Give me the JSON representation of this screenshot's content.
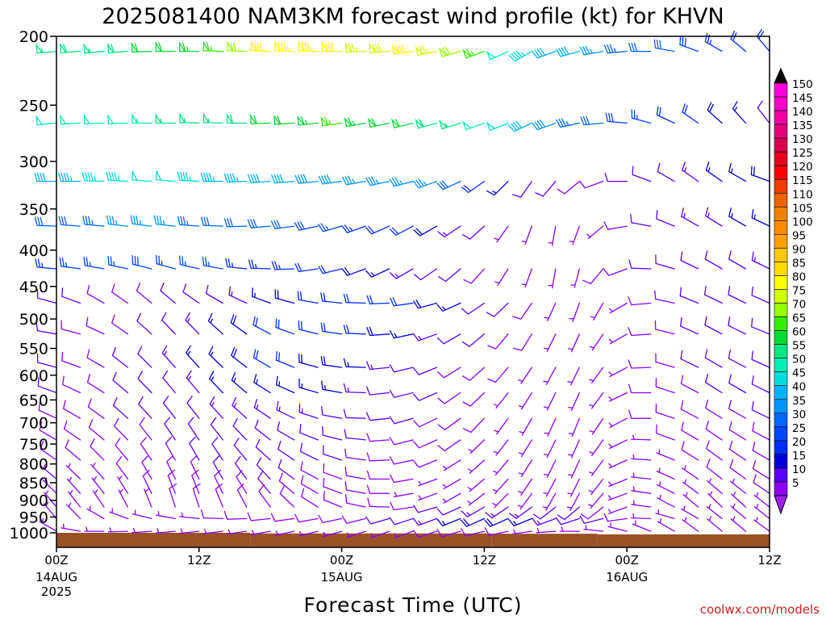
{
  "chart_data": {
    "type": "wind-barb",
    "title": "2025081400 NAM3KM forecast wind profile (kt) for KHVN",
    "xlabel": "Forecast Time (UTC)",
    "ylabel": "",
    "watermark": "coolwx.com/models",
    "x_axis": {
      "range_hours": [
        0,
        60
      ],
      "ticks": [
        {
          "hour": 0,
          "label": "00Z",
          "sub": [
            "14AUG",
            "2025"
          ]
        },
        {
          "hour": 12,
          "label": "12Z",
          "sub": []
        },
        {
          "hour": 24,
          "label": "00Z",
          "sub": [
            "15AUG"
          ]
        },
        {
          "hour": 36,
          "label": "12Z",
          "sub": []
        },
        {
          "hour": 48,
          "label": "00Z",
          "sub": [
            "16AUG"
          ]
        },
        {
          "hour": 60,
          "label": "12Z",
          "sub": []
        }
      ]
    },
    "y_axis": {
      "unit": "hPa",
      "range": [
        1000,
        200
      ],
      "scale": "log-pressure (approx.)",
      "ticks": [
        200,
        250,
        300,
        350,
        400,
        450,
        500,
        550,
        600,
        650,
        700,
        750,
        800,
        850,
        900,
        950,
        1000
      ]
    },
    "colorbar": {
      "labels": [
        "150",
        "145",
        "140",
        "135",
        "130",
        "125",
        "120",
        "115",
        "110",
        "105",
        "100",
        "95",
        "90",
        "85",
        "80",
        "75",
        "70",
        "65",
        "60",
        "55",
        "50",
        "45",
        "40",
        "35",
        "30",
        "25",
        "20",
        "15",
        "10",
        "5"
      ],
      "colors": [
        "#ff00dc",
        "#fa00c8",
        "#f000a0",
        "#e6007a",
        "#dc0050",
        "#e6001e",
        "#ff0000",
        "#f03c00",
        "#f06400",
        "#f08200",
        "#ff8c00",
        "#ffa000",
        "#ffc800",
        "#ffdc00",
        "#ffff00",
        "#d2ff00",
        "#96ff00",
        "#32f000",
        "#00dc32",
        "#00e682",
        "#00f0b4",
        "#00dcdc",
        "#00b4ff",
        "#0096ff",
        "#0064ff",
        "#0046ff",
        "#002dff",
        "#0000dc",
        "#5a00ff",
        "#8c00ff"
      ],
      "over_color": "#000000",
      "under_color": "#a020f0"
    },
    "levels_hpa": [
      210,
      265,
      320,
      370,
      425,
      475,
      525,
      585,
      635,
      690,
      740,
      790,
      840,
      880,
      920,
      955,
      995
    ],
    "profiles": [
      {
        "hpa": 210,
        "speed": [
          55,
          58,
          56,
          58,
          60,
          62,
          64,
          65,
          70,
          82,
          84,
          83,
          80,
          76,
          78,
          80,
          77,
          72,
          66,
          52,
          45,
          42,
          40,
          36,
          34,
          31,
          30,
          28,
          24,
          22,
          20
        ],
        "dir": [
          265,
          266,
          265,
          266,
          268,
          270,
          270,
          272,
          272,
          273,
          272,
          272,
          270,
          268,
          266,
          262,
          258,
          254,
          250,
          245,
          240,
          250,
          255,
          260,
          265,
          270,
          280,
          290,
          300,
          310,
          320
        ]
      },
      {
        "hpa": 265,
        "speed": [
          48,
          50,
          52,
          51,
          54,
          55,
          56,
          57,
          58,
          60,
          62,
          64,
          65,
          64,
          62,
          60,
          58,
          55,
          52,
          48,
          42,
          38,
          34,
          30,
          28,
          25,
          22,
          20,
          18,
          15,
          12
        ],
        "dir": [
          265,
          267,
          268,
          268,
          270,
          270,
          272,
          272,
          270,
          268,
          266,
          264,
          262,
          260,
          258,
          256,
          255,
          253,
          250,
          248,
          245,
          250,
          258,
          265,
          275,
          285,
          295,
          305,
          312,
          318,
          322
        ]
      },
      {
        "hpa": 320,
        "speed": [
          42,
          44,
          45,
          47,
          48,
          48,
          46,
          44,
          43,
          42,
          40,
          39,
          38,
          37,
          36,
          36,
          35,
          30,
          22,
          16,
          12,
          10,
          8,
          8,
          10,
          12,
          12,
          14,
          15,
          16,
          18
        ],
        "dir": [
          270,
          270,
          272,
          273,
          274,
          275,
          273,
          270,
          268,
          266,
          265,
          264,
          262,
          260,
          258,
          255,
          250,
          245,
          235,
          225,
          215,
          220,
          230,
          250,
          270,
          290,
          300,
          305,
          305,
          300,
          290
        ]
      },
      {
        "hpa": 370,
        "speed": [
          30,
          32,
          34,
          35,
          36,
          35,
          33,
          32,
          31,
          30,
          30,
          28,
          26,
          24,
          22,
          20,
          18,
          14,
          10,
          7,
          6,
          5,
          5,
          6,
          8,
          10,
          12,
          14,
          14,
          15,
          16
        ],
        "dir": [
          272,
          274,
          275,
          276,
          277,
          276,
          274,
          272,
          268,
          265,
          262,
          258,
          254,
          250,
          246,
          242,
          240,
          236,
          228,
          215,
          200,
          190,
          200,
          230,
          260,
          280,
          292,
          300,
          302,
          300,
          295
        ]
      },
      {
        "hpa": 425,
        "speed": [
          24,
          25,
          26,
          27,
          28,
          27,
          26,
          25,
          24,
          24,
          23,
          22,
          20,
          18,
          16,
          14,
          12,
          10,
          8,
          6,
          5,
          5,
          6,
          8,
          9,
          10,
          10,
          10,
          12,
          12,
          13
        ],
        "dir": [
          275,
          278,
          280,
          282,
          284,
          285,
          283,
          280,
          276,
          272,
          268,
          262,
          256,
          250,
          245,
          240,
          236,
          230,
          222,
          212,
          200,
          190,
          195,
          220,
          250,
          272,
          286,
          296,
          300,
          300,
          296
        ]
      },
      {
        "hpa": 475,
        "speed": [
          12,
          10,
          8,
          8,
          9,
          10,
          11,
          12,
          14,
          16,
          18,
          20,
          22,
          22,
          21,
          20,
          18,
          15,
          12,
          10,
          8,
          6,
          5,
          6,
          7,
          8,
          9,
          10,
          10,
          10,
          11
        ],
        "dir": [
          285,
          290,
          300,
          305,
          310,
          310,
          305,
          300,
          295,
          290,
          285,
          280,
          276,
          272,
          268,
          262,
          255,
          246,
          236,
          226,
          215,
          205,
          200,
          210,
          240,
          265,
          282,
          292,
          296,
          296,
          294
        ]
      },
      {
        "hpa": 525,
        "speed": [
          10,
          9,
          8,
          9,
          10,
          12,
          14,
          16,
          18,
          20,
          22,
          22,
          21,
          20,
          18,
          16,
          14,
          12,
          10,
          9,
          8,
          7,
          6,
          6,
          7,
          8,
          9,
          10,
          10,
          10,
          11
        ],
        "dir": [
          280,
          285,
          295,
          305,
          312,
          316,
          316,
          312,
          306,
          298,
          290,
          284,
          278,
          272,
          266,
          258,
          250,
          240,
          230,
          220,
          212,
          206,
          204,
          214,
          240,
          266,
          284,
          294,
          298,
          296,
          292
        ]
      },
      {
        "hpa": 585,
        "speed": [
          10,
          9,
          9,
          10,
          11,
          13,
          15,
          17,
          19,
          20,
          20,
          19,
          18,
          16,
          14,
          12,
          10,
          9,
          8,
          8,
          7,
          7,
          6,
          6,
          7,
          8,
          9,
          10,
          10,
          10,
          10
        ],
        "dir": [
          285,
          290,
          300,
          308,
          315,
          318,
          318,
          314,
          308,
          300,
          292,
          285,
          278,
          272,
          264,
          256,
          248,
          238,
          228,
          220,
          214,
          208,
          206,
          216,
          242,
          268,
          286,
          296,
          300,
          298,
          294
        ]
      },
      {
        "hpa": 635,
        "speed": [
          10,
          9,
          9,
          10,
          11,
          12,
          14,
          15,
          16,
          17,
          17,
          16,
          15,
          14,
          12,
          11,
          10,
          9,
          8,
          7,
          7,
          6,
          6,
          6,
          7,
          8,
          9,
          9,
          10,
          10,
          10
        ],
        "dir": [
          290,
          295,
          302,
          310,
          316,
          320,
          320,
          316,
          310,
          302,
          294,
          286,
          280,
          272,
          264,
          256,
          246,
          236,
          226,
          218,
          212,
          206,
          204,
          216,
          244,
          270,
          288,
          298,
          302,
          300,
          296
        ]
      },
      {
        "hpa": 690,
        "speed": [
          9,
          9,
          9,
          10,
          10,
          11,
          12,
          13,
          14,
          14,
          14,
          13,
          12,
          11,
          10,
          10,
          9,
          8,
          8,
          7,
          7,
          6,
          6,
          6,
          7,
          8,
          8,
          9,
          9,
          9,
          10
        ],
        "dir": [
          295,
          300,
          306,
          312,
          318,
          322,
          322,
          318,
          312,
          304,
          296,
          288,
          280,
          272,
          264,
          254,
          244,
          234,
          224,
          216,
          210,
          204,
          202,
          214,
          242,
          270,
          288,
          298,
          302,
          300,
          296
        ]
      },
      {
        "hpa": 740,
        "speed": [
          8,
          8,
          8,
          9,
          9,
          10,
          10,
          11,
          12,
          12,
          11,
          11,
          10,
          10,
          9,
          9,
          8,
          8,
          7,
          7,
          6,
          6,
          6,
          6,
          7,
          7,
          8,
          8,
          9,
          9,
          9
        ],
        "dir": [
          300,
          304,
          310,
          316,
          322,
          326,
          326,
          322,
          316,
          308,
          300,
          292,
          284,
          276,
          266,
          256,
          246,
          236,
          226,
          218,
          212,
          206,
          204,
          216,
          244,
          272,
          290,
          300,
          304,
          302,
          298
        ]
      },
      {
        "hpa": 790,
        "speed": [
          8,
          8,
          8,
          8,
          9,
          9,
          10,
          10,
          11,
          11,
          10,
          10,
          10,
          9,
          9,
          8,
          8,
          7,
          7,
          7,
          6,
          6,
          6,
          6,
          6,
          7,
          7,
          8,
          8,
          8,
          9
        ],
        "dir": [
          305,
          310,
          315,
          320,
          326,
          330,
          330,
          326,
          320,
          312,
          304,
          296,
          288,
          278,
          268,
          258,
          248,
          238,
          228,
          220,
          212,
          206,
          204,
          216,
          246,
          274,
          292,
          302,
          306,
          304,
          300
        ]
      },
      {
        "hpa": 840,
        "speed": [
          7,
          7,
          7,
          8,
          8,
          9,
          9,
          10,
          10,
          10,
          10,
          9,
          9,
          9,
          8,
          8,
          7,
          7,
          7,
          6,
          6,
          6,
          6,
          6,
          6,
          6,
          7,
          7,
          8,
          8,
          8
        ],
        "dir": [
          310,
          314,
          318,
          324,
          330,
          334,
          334,
          330,
          324,
          316,
          306,
          298,
          290,
          280,
          270,
          260,
          250,
          240,
          230,
          222,
          214,
          208,
          206,
          218,
          248,
          276,
          294,
          304,
          308,
          306,
          302
        ]
      },
      {
        "hpa": 880,
        "speed": [
          6,
          6,
          7,
          7,
          8,
          8,
          9,
          9,
          9,
          9,
          9,
          9,
          8,
          8,
          8,
          7,
          7,
          7,
          6,
          6,
          6,
          6,
          6,
          5,
          5,
          6,
          6,
          7,
          7,
          7,
          8
        ],
        "dir": [
          315,
          318,
          322,
          328,
          334,
          338,
          338,
          334,
          328,
          320,
          310,
          300,
          290,
          280,
          270,
          260,
          250,
          240,
          232,
          224,
          216,
          210,
          208,
          220,
          250,
          278,
          296,
          306,
          310,
          308,
          304
        ]
      },
      {
        "hpa": 920,
        "speed": [
          6,
          6,
          6,
          7,
          7,
          8,
          8,
          8,
          9,
          9,
          9,
          8,
          8,
          8,
          8,
          9,
          10,
          12,
          14,
          14,
          13,
          12,
          10,
          8,
          6,
          5,
          5,
          6,
          6,
          7,
          7
        ],
        "dir": [
          320,
          322,
          326,
          332,
          338,
          342,
          342,
          338,
          332,
          324,
          314,
          302,
          292,
          282,
          272,
          262,
          254,
          246,
          240,
          236,
          234,
          232,
          230,
          232,
          250,
          278,
          298,
          310,
          314,
          312,
          308
        ]
      },
      {
        "hpa": 955,
        "speed": [
          5,
          5,
          6,
          6,
          6,
          7,
          7,
          8,
          8,
          8,
          8,
          8,
          8,
          9,
          10,
          12,
          14,
          16,
          18,
          18,
          16,
          14,
          12,
          10,
          8,
          6,
          5,
          5,
          6,
          6,
          7
        ],
        "dir": [
          320,
          316,
          300,
          290,
          284,
          280,
          276,
          272,
          268,
          264,
          262,
          260,
          258,
          256,
          254,
          252,
          250,
          248,
          246,
          246,
          248,
          250,
          252,
          256,
          262,
          272,
          286,
          300,
          308,
          310,
          308
        ]
      },
      {
        "hpa": 995,
        "speed": [
          5,
          5,
          5,
          5,
          5,
          5,
          6,
          6,
          6,
          6,
          5,
          5,
          5,
          5,
          6,
          7,
          8,
          8,
          8,
          8,
          7,
          6,
          6,
          5,
          5,
          5,
          5,
          5,
          5,
          6,
          6
        ],
        "dir": [
          300,
          280,
          270,
          268,
          266,
          265,
          264,
          263,
          262,
          260,
          258,
          256,
          254,
          252,
          250,
          250,
          252,
          254,
          256,
          258,
          262,
          266,
          270,
          276,
          284,
          292,
          300,
          306,
          310,
          310,
          306
        ]
      }
    ],
    "surface": [
      {
        "hours": [
          0,
          16.3
        ],
        "hpa": 1000
      },
      {
        "hours": [
          16.3,
          36.6
        ],
        "hpa": 1002
      },
      {
        "hours": [
          36.6,
          45.5
        ],
        "hpa": 1003
      },
      {
        "hours": [
          45.5,
          60
        ],
        "hpa": 1005
      }
    ],
    "surface_color": "#9a5225"
  }
}
